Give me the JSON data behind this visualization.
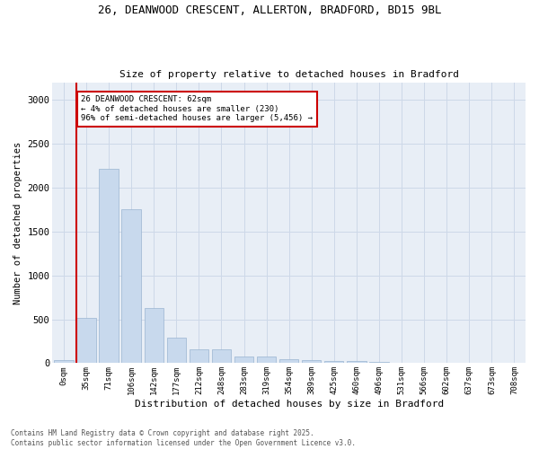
{
  "title_line1": "26, DEANWOOD CRESCENT, ALLERTON, BRADFORD, BD15 9BL",
  "title_line2": "Size of property relative to detached houses in Bradford",
  "xlabel": "Distribution of detached houses by size in Bradford",
  "ylabel": "Number of detached properties",
  "bar_color": "#c8d9ed",
  "bar_edge_color": "#9ab4d0",
  "vline_color": "#cc0000",
  "vline_x_index": 1,
  "annotation_title": "26 DEANWOOD CRESCENT: 62sqm",
  "annotation_line2": "← 4% of detached houses are smaller (230)",
  "annotation_line3": "96% of semi-detached houses are larger (5,456) →",
  "annotation_box_edgecolor": "#cc0000",
  "categories": [
    "0sqm",
    "35sqm",
    "71sqm",
    "106sqm",
    "142sqm",
    "177sqm",
    "212sqm",
    "248sqm",
    "283sqm",
    "319sqm",
    "354sqm",
    "389sqm",
    "425sqm",
    "460sqm",
    "496sqm",
    "531sqm",
    "566sqm",
    "602sqm",
    "637sqm",
    "673sqm",
    "708sqm"
  ],
  "values": [
    30,
    520,
    2210,
    1750,
    630,
    290,
    155,
    155,
    80,
    75,
    45,
    30,
    25,
    20,
    10,
    5,
    2,
    2,
    1,
    0,
    0
  ],
  "ylim": [
    0,
    3200
  ],
  "yticks": [
    0,
    500,
    1000,
    1500,
    2000,
    2500,
    3000
  ],
  "grid_color": "#cdd8e8",
  "background_color": "#e8eef6",
  "footer_line1": "Contains HM Land Registry data © Crown copyright and database right 2025.",
  "footer_line2": "Contains public sector information licensed under the Open Government Licence v3.0."
}
